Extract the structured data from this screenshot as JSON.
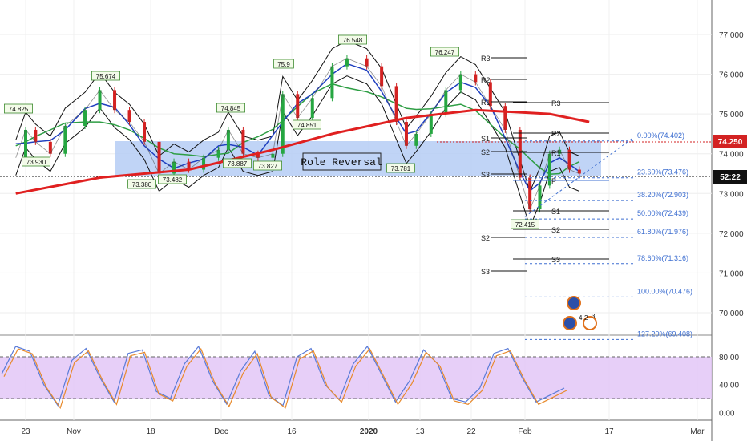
{
  "chart_data": {
    "type": "line",
    "title": "",
    "price_axis": {
      "ticks": [
        "77.000",
        "76.000",
        "75.000",
        "74.000",
        "73.000",
        "72.000",
        "71.000",
        "70.000"
      ],
      "range": [
        69.2,
        77.6
      ]
    },
    "indicator_axis": {
      "ticks": [
        "80.00",
        "40.00",
        "0.00"
      ],
      "range": [
        -5,
        100
      ],
      "band": [
        20,
        80
      ]
    },
    "x_axis": {
      "ticks": [
        "23",
        "Nov",
        "18",
        "Dec",
        "16",
        "2020",
        "13",
        "22",
        "Feb",
        "17",
        "Mar"
      ]
    },
    "price_series": [
      {
        "x": "Oct 21",
        "y": 73.9
      },
      {
        "x": "Oct 23",
        "y": 74.6
      },
      {
        "x": "Oct 25",
        "y": 74.3
      },
      {
        "x": "Oct 28",
        "y": 74.0
      },
      {
        "x": "Oct 31",
        "y": 74.7
      },
      {
        "x": "Nov 4",
        "y": 75.1
      },
      {
        "x": "Nov 7",
        "y": 75.6
      },
      {
        "x": "Nov 10",
        "y": 75.1
      },
      {
        "x": "Nov 13",
        "y": 74.8
      },
      {
        "x": "Nov 16",
        "y": 74.3
      },
      {
        "x": "Nov 19",
        "y": 73.5
      },
      {
        "x": "Nov 22",
        "y": 73.8
      },
      {
        "x": "Nov 25",
        "y": 73.6
      },
      {
        "x": "Nov 28",
        "y": 73.9
      },
      {
        "x": "Dec 1",
        "y": 74.1
      },
      {
        "x": "Dec 3",
        "y": 74.6
      },
      {
        "x": "Dec 6",
        "y": 74.0
      },
      {
        "x": "Dec 9",
        "y": 73.9
      },
      {
        "x": "Dec 12",
        "y": 74.0
      },
      {
        "x": "Dec 14",
        "y": 75.5
      },
      {
        "x": "Dec 17",
        "y": 74.9
      },
      {
        "x": "Dec 20",
        "y": 75.4
      },
      {
        "x": "Dec 24",
        "y": 76.2
      },
      {
        "x": "Dec 27",
        "y": 76.4
      },
      {
        "x": "Dec 31",
        "y": 76.2
      },
      {
        "x": "Jan 3",
        "y": 75.7
      },
      {
        "x": "Jan 6",
        "y": 74.8
      },
      {
        "x": "Jan 8",
        "y": 74.2
      },
      {
        "x": "Jan 10",
        "y": 74.5
      },
      {
        "x": "Jan 13",
        "y": 75.0
      },
      {
        "x": "Jan 16",
        "y": 75.6
      },
      {
        "x": "Jan 19",
        "y": 76.0
      },
      {
        "x": "Jan 22",
        "y": 75.8
      },
      {
        "x": "Jan 25",
        "y": 75.2
      },
      {
        "x": "Jan 28",
        "y": 74.6
      },
      {
        "x": "Jan 31",
        "y": 73.4
      },
      {
        "x": "Feb 2",
        "y": 72.6
      },
      {
        "x": "Feb 4",
        "y": 73.2
      },
      {
        "x": "Feb 6",
        "y": 74.0
      },
      {
        "x": "Feb 8",
        "y": 74.1
      },
      {
        "x": "Feb 10",
        "y": 73.6
      },
      {
        "x": "Feb 12",
        "y": 73.5
      }
    ],
    "ma200": [
      {
        "x": "Oct 21",
        "y": 73.0
      },
      {
        "x": "Nov 7",
        "y": 73.4
      },
      {
        "x": "Nov 25",
        "y": 73.6
      },
      {
        "x": "Dec 12",
        "y": 74.1
      },
      {
        "x": "Dec 24",
        "y": 74.5
      },
      {
        "x": "Jan 8",
        "y": 74.9
      },
      {
        "x": "Jan 22",
        "y": 75.1
      },
      {
        "x": "Feb 6",
        "y": 75.0
      },
      {
        "x": "Feb 14",
        "y": 74.8
      }
    ],
    "oscillator": [
      55,
      95,
      88,
      40,
      10,
      75,
      92,
      50,
      15,
      85,
      90,
      30,
      20,
      70,
      95,
      45,
      12,
      60,
      88,
      25,
      10,
      80,
      92,
      40,
      18,
      70,
      95,
      55,
      15,
      45,
      90,
      70,
      20,
      15,
      35,
      85,
      92,
      50,
      15,
      25,
      35
    ],
    "price_callouts": [
      "74.825",
      "73.930",
      "75.674",
      "73.380",
      "73.482",
      "74.845",
      "73.887",
      "73.827",
      "75.9",
      "74.851",
      "76.548",
      "73.781",
      "76.247",
      "72.415"
    ],
    "annotation": "Role Reversal",
    "pivots_left": [
      "R3",
      "R2",
      "R1",
      "S1",
      "S2",
      "S3",
      "S2",
      "S3"
    ],
    "pivots_right": [
      "R3",
      "R2",
      "R1",
      "P",
      "S1",
      "S2",
      "S3"
    ],
    "fibonacci": [
      {
        "label": "0.00%(74.402)",
        "value": 74.402
      },
      {
        "label": "23.60%(73.476)",
        "value": 73.476
      },
      {
        "label": "38.20%(72.903)",
        "value": 72.903
      },
      {
        "label": "50.00%(72.439)",
        "value": 72.439
      },
      {
        "label": "61.80%(71.976)",
        "value": 71.976
      },
      {
        "label": "78.60%(71.316)",
        "value": 71.316
      },
      {
        "label": "100.00%(70.476)",
        "value": 70.476
      },
      {
        "label": "127.20%(69.408)",
        "value": 69.408
      }
    ],
    "current_price_label": "74.250",
    "countdown_label": "52:22",
    "event_badges": [
      "4",
      "2",
      "3"
    ],
    "colors": {
      "ma200": "#e02020",
      "ma_mid": "#2e9e44",
      "ma_fast": "#1f3fbf",
      "bollinger": "#111111",
      "zone": "#b5cdf5",
      "osc_band": "#e3c7f7",
      "osc_line1": "#e88a2c",
      "osc_line2": "#5a7bd8",
      "fib": "#3e6fd1",
      "current_price": "#d32222"
    }
  }
}
